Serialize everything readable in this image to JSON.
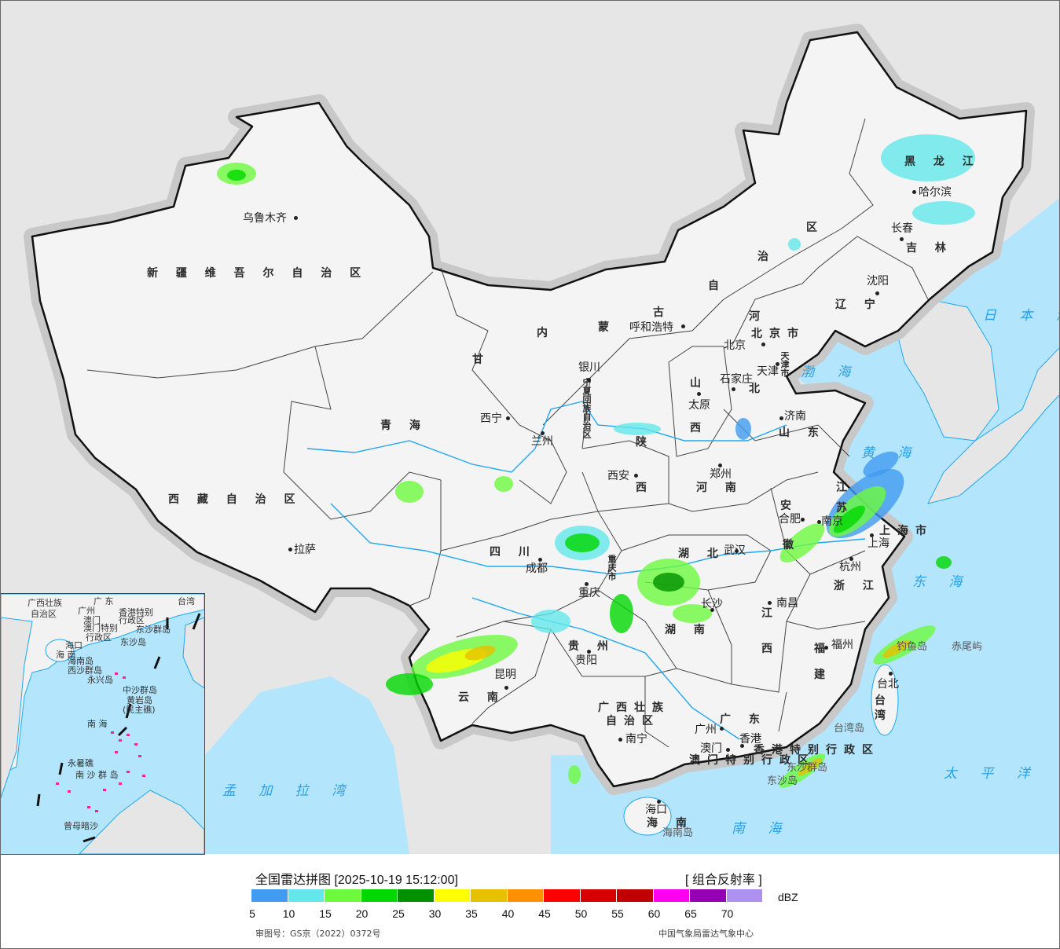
{
  "map": {
    "title": "全国雷达拼图",
    "colors": {
      "land_outside": "#e6e6e6",
      "sea": "#b3e5fc",
      "china_land": "#f4f4f4",
      "border": "#111111",
      "river": "#1fa8f0",
      "halo": "#c8c8c8"
    },
    "provinces": [
      "新 疆 维 吾 尔 自 治 区",
      "西 藏 自 治 区",
      "青 海",
      "甘",
      "内",
      "蒙",
      "古",
      "自",
      "治",
      "区",
      "黑 龙 江",
      "吉 林",
      "辽 宁",
      "河",
      "北",
      "山",
      "西",
      "山 东",
      "河 南",
      "陕",
      "西",
      "宁夏回族自治区",
      "四 川",
      "重庆市",
      "湖 北",
      "安",
      "徽",
      "江",
      "苏",
      "上海市",
      "浙 江",
      "江",
      "西",
      "湖 南",
      "贵 州",
      "云 南",
      "福",
      "建",
      "台",
      "湾",
      "广西壮族",
      "自治区",
      "广 东",
      "海 南",
      "香港特别行政区",
      "澳门特别行政区",
      "北京市",
      "天津市"
    ],
    "cities": [
      "乌鲁木齐",
      "拉萨",
      "西宁",
      "兰州",
      "银川",
      "呼和浩特",
      "北京",
      "天津",
      "石家庄",
      "太原",
      "济南",
      "郑州",
      "西安",
      "成都",
      "重庆",
      "武汉",
      "合肥",
      "南京",
      "上海",
      "杭州",
      "南昌",
      "长沙",
      "贵阳",
      "昆明",
      "南宁",
      "广州",
      "澳门",
      "香港",
      "海口",
      "福州",
      "台北",
      "长春",
      "哈尔滨",
      "沈阳"
    ],
    "islands": [
      "钓鱼岛",
      "赤尾屿",
      "台湾岛",
      "东沙群岛",
      "东沙岛",
      "海南岛"
    ],
    "seas": [
      "日 本 海",
      "渤 海",
      "黄 海",
      "东 海",
      "太 平 洋",
      "南 海",
      "孟 加 拉 湾"
    ],
    "inset_labels": [
      "广西壮族",
      "自治区",
      "广 东",
      "广州",
      "台湾",
      "香港特别",
      "行政区",
      "澳门",
      "澳门特别",
      "行政区",
      "东沙群岛",
      "东沙岛",
      "海口",
      "海 南",
      "海南岛",
      "西沙群岛",
      "永兴岛",
      "中沙群岛",
      "黄岩岛",
      "(民主礁)",
      "南 海",
      "永暑礁",
      "南 沙 群 岛",
      "曾母暗沙"
    ]
  },
  "legend": {
    "title": "全国雷达拼图 [2025-10-19 15:12:00]",
    "product": "[ 组合反射率 ]",
    "unit": "dBZ",
    "colors": [
      "#419bf0",
      "#64e7eb",
      "#6dfa3d",
      "#00d800",
      "#019000",
      "#ffff00",
      "#e7c000",
      "#ff9000",
      "#ff0000",
      "#d60000",
      "#c00000",
      "#ff00f0",
      "#9600b4",
      "#ad90f0"
    ],
    "ticks": [
      "5",
      "10",
      "15",
      "20",
      "25",
      "30",
      "35",
      "40",
      "45",
      "50",
      "55",
      "60",
      "65",
      "70"
    ],
    "approval": "审图号：GS京（2022）0372号",
    "source": "中国气象局雷达气象中心"
  }
}
